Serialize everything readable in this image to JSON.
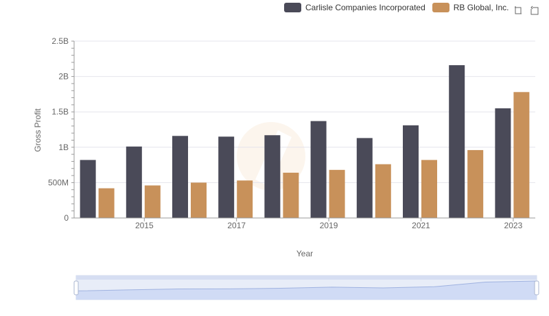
{
  "chart_data": {
    "type": "bar",
    "x": [
      2014,
      2015,
      2016,
      2017,
      2018,
      2019,
      2020,
      2021,
      2022,
      2023
    ],
    "x_tick_labels": [
      "2015",
      "2017",
      "2019",
      "2021",
      "2023"
    ],
    "series": [
      {
        "name": "Carlisle Companies Incorporated",
        "color": "#4a4a58",
        "values": [
          820000000,
          1010000000,
          1160000000,
          1150000000,
          1170000000,
          1370000000,
          1130000000,
          1310000000,
          2160000000,
          1550000000
        ]
      },
      {
        "name": "RB Global, Inc.",
        "color": "#c8915a",
        "values": [
          420000000,
          460000000,
          500000000,
          530000000,
          640000000,
          680000000,
          760000000,
          820000000,
          960000000,
          1780000000
        ]
      }
    ],
    "y_ticks": [
      0,
      500000000,
      1000000000,
      1500000000,
      2000000000,
      2500000000
    ],
    "y_tick_labels": [
      "0",
      "500M",
      "1B",
      "1.5B",
      "2B",
      "2.5B"
    ],
    "ylim": [
      0,
      2500000000
    ],
    "xlabel": "Year",
    "ylabel": "Gross Profit",
    "grid": true,
    "legend_position": "top-right"
  },
  "toolbar": {
    "icons": [
      "crosshair-select-icon",
      "restore-icon"
    ]
  }
}
